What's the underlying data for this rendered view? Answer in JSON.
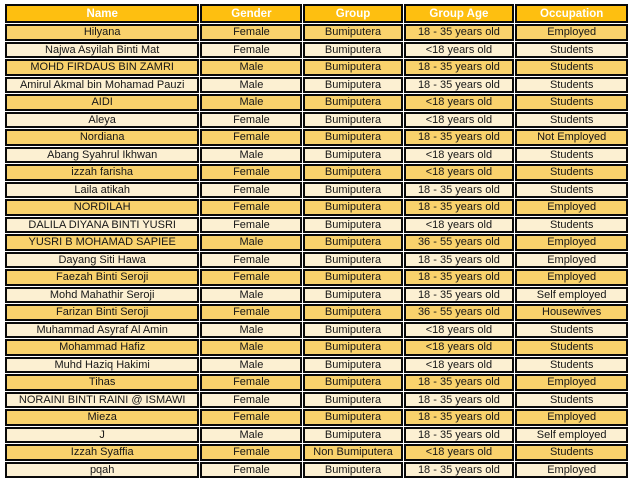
{
  "colors": {
    "header_bg": "#febf10",
    "header_text": "#ffffff",
    "row_gold": "#f9d26c",
    "row_cream": "#fcf0d2",
    "border": "#0a0a0a",
    "cell_text": "#161616"
  },
  "chart_data": {
    "type": "table",
    "title": "",
    "columns": [
      "Name",
      "Gender",
      "Group",
      "Group Age",
      "Occupation"
    ],
    "rows": [
      [
        "Hilyana",
        "Female",
        "Bumiputera",
        "18 - 35 years old",
        "Employed"
      ],
      [
        "Najwa Asyilah Binti Mat",
        "Female",
        "Bumiputera",
        "<18 years old",
        "Students"
      ],
      [
        "MOHD FIRDAUS BIN ZAMRI",
        "Male",
        "Bumiputera",
        "18 - 35 years old",
        "Students"
      ],
      [
        "Amirul Akmal bin Mohamad Pauzi",
        "Male",
        "Bumiputera",
        "18 - 35 years old",
        "Students"
      ],
      [
        "AIDI",
        "Male",
        "Bumiputera",
        "<18 years old",
        "Students"
      ],
      [
        "Aleya",
        "Female",
        "Bumiputera",
        "<18 years old",
        "Students"
      ],
      [
        "Nordiana",
        "Female",
        "Bumiputera",
        "18 - 35 years old",
        "Not Employed"
      ],
      [
        "Abang Syahrul Ikhwan",
        "Male",
        "Bumiputera",
        "<18 years old",
        "Students"
      ],
      [
        "izzah farisha",
        "Female",
        "Bumiputera",
        "<18 years old",
        "Students"
      ],
      [
        "Laila atikah",
        "Female",
        "Bumiputera",
        "18 - 35 years old",
        "Students"
      ],
      [
        "NORDILAH",
        "Female",
        "Bumiputera",
        "18 - 35 years old",
        "Employed"
      ],
      [
        "DALILA DIYANA BINTI YUSRI",
        "Female",
        "Bumiputera",
        "<18 years old",
        "Students"
      ],
      [
        "YUSRI B MOHAMAD SAPIEE",
        "Male",
        "Bumiputera",
        "36 - 55 years old",
        "Employed"
      ],
      [
        "Dayang Siti Hawa",
        "Female",
        "Bumiputera",
        "18 - 35 years old",
        "Employed"
      ],
      [
        "Faezah Binti Seroji",
        "Female",
        "Bumiputera",
        "18 - 35 years old",
        "Employed"
      ],
      [
        "Mohd Mahathir Seroji",
        "Male",
        "Bumiputera",
        "18 - 35 years old",
        "Self employed"
      ],
      [
        "Farizan Binti Seroji",
        "Female",
        "Bumiputera",
        "36 - 55 years old",
        "Housewives"
      ],
      [
        "Muhammad Asyraf Al Amin",
        "Male",
        "Bumiputera",
        "<18 years old",
        "Students"
      ],
      [
        "Mohammad Hafiz",
        "Male",
        "Bumiputera",
        "<18 years old",
        "Students"
      ],
      [
        "Muhd Haziq Hakimi",
        "Male",
        "Bumiputera",
        "<18 years old",
        "Students"
      ],
      [
        "Tihas",
        "Female",
        "Bumiputera",
        "18 - 35 years old",
        "Employed"
      ],
      [
        "NORAINI BINTI RAINI @ ISMAWI",
        "Female",
        "Bumiputera",
        "18 - 35 years old",
        "Students"
      ],
      [
        "Mieza",
        "Female",
        "Bumiputera",
        "18 - 35 years old",
        "Employed"
      ],
      [
        "J",
        "Male",
        "Bumiputera",
        "18 - 35 years old",
        "Self employed"
      ],
      [
        "Izzah Syaffia",
        "Female",
        "Non Bumiputera",
        "<18 years old",
        "Students"
      ],
      [
        "pqah",
        "Female",
        "Bumiputera",
        "18 - 35 years old",
        "Employed"
      ]
    ],
    "layout": {
      "banded_rows": true,
      "column_width_pct": [
        31.4,
        16.5,
        16.0,
        17.9,
        18.2
      ],
      "all_text_centered": true
    }
  }
}
